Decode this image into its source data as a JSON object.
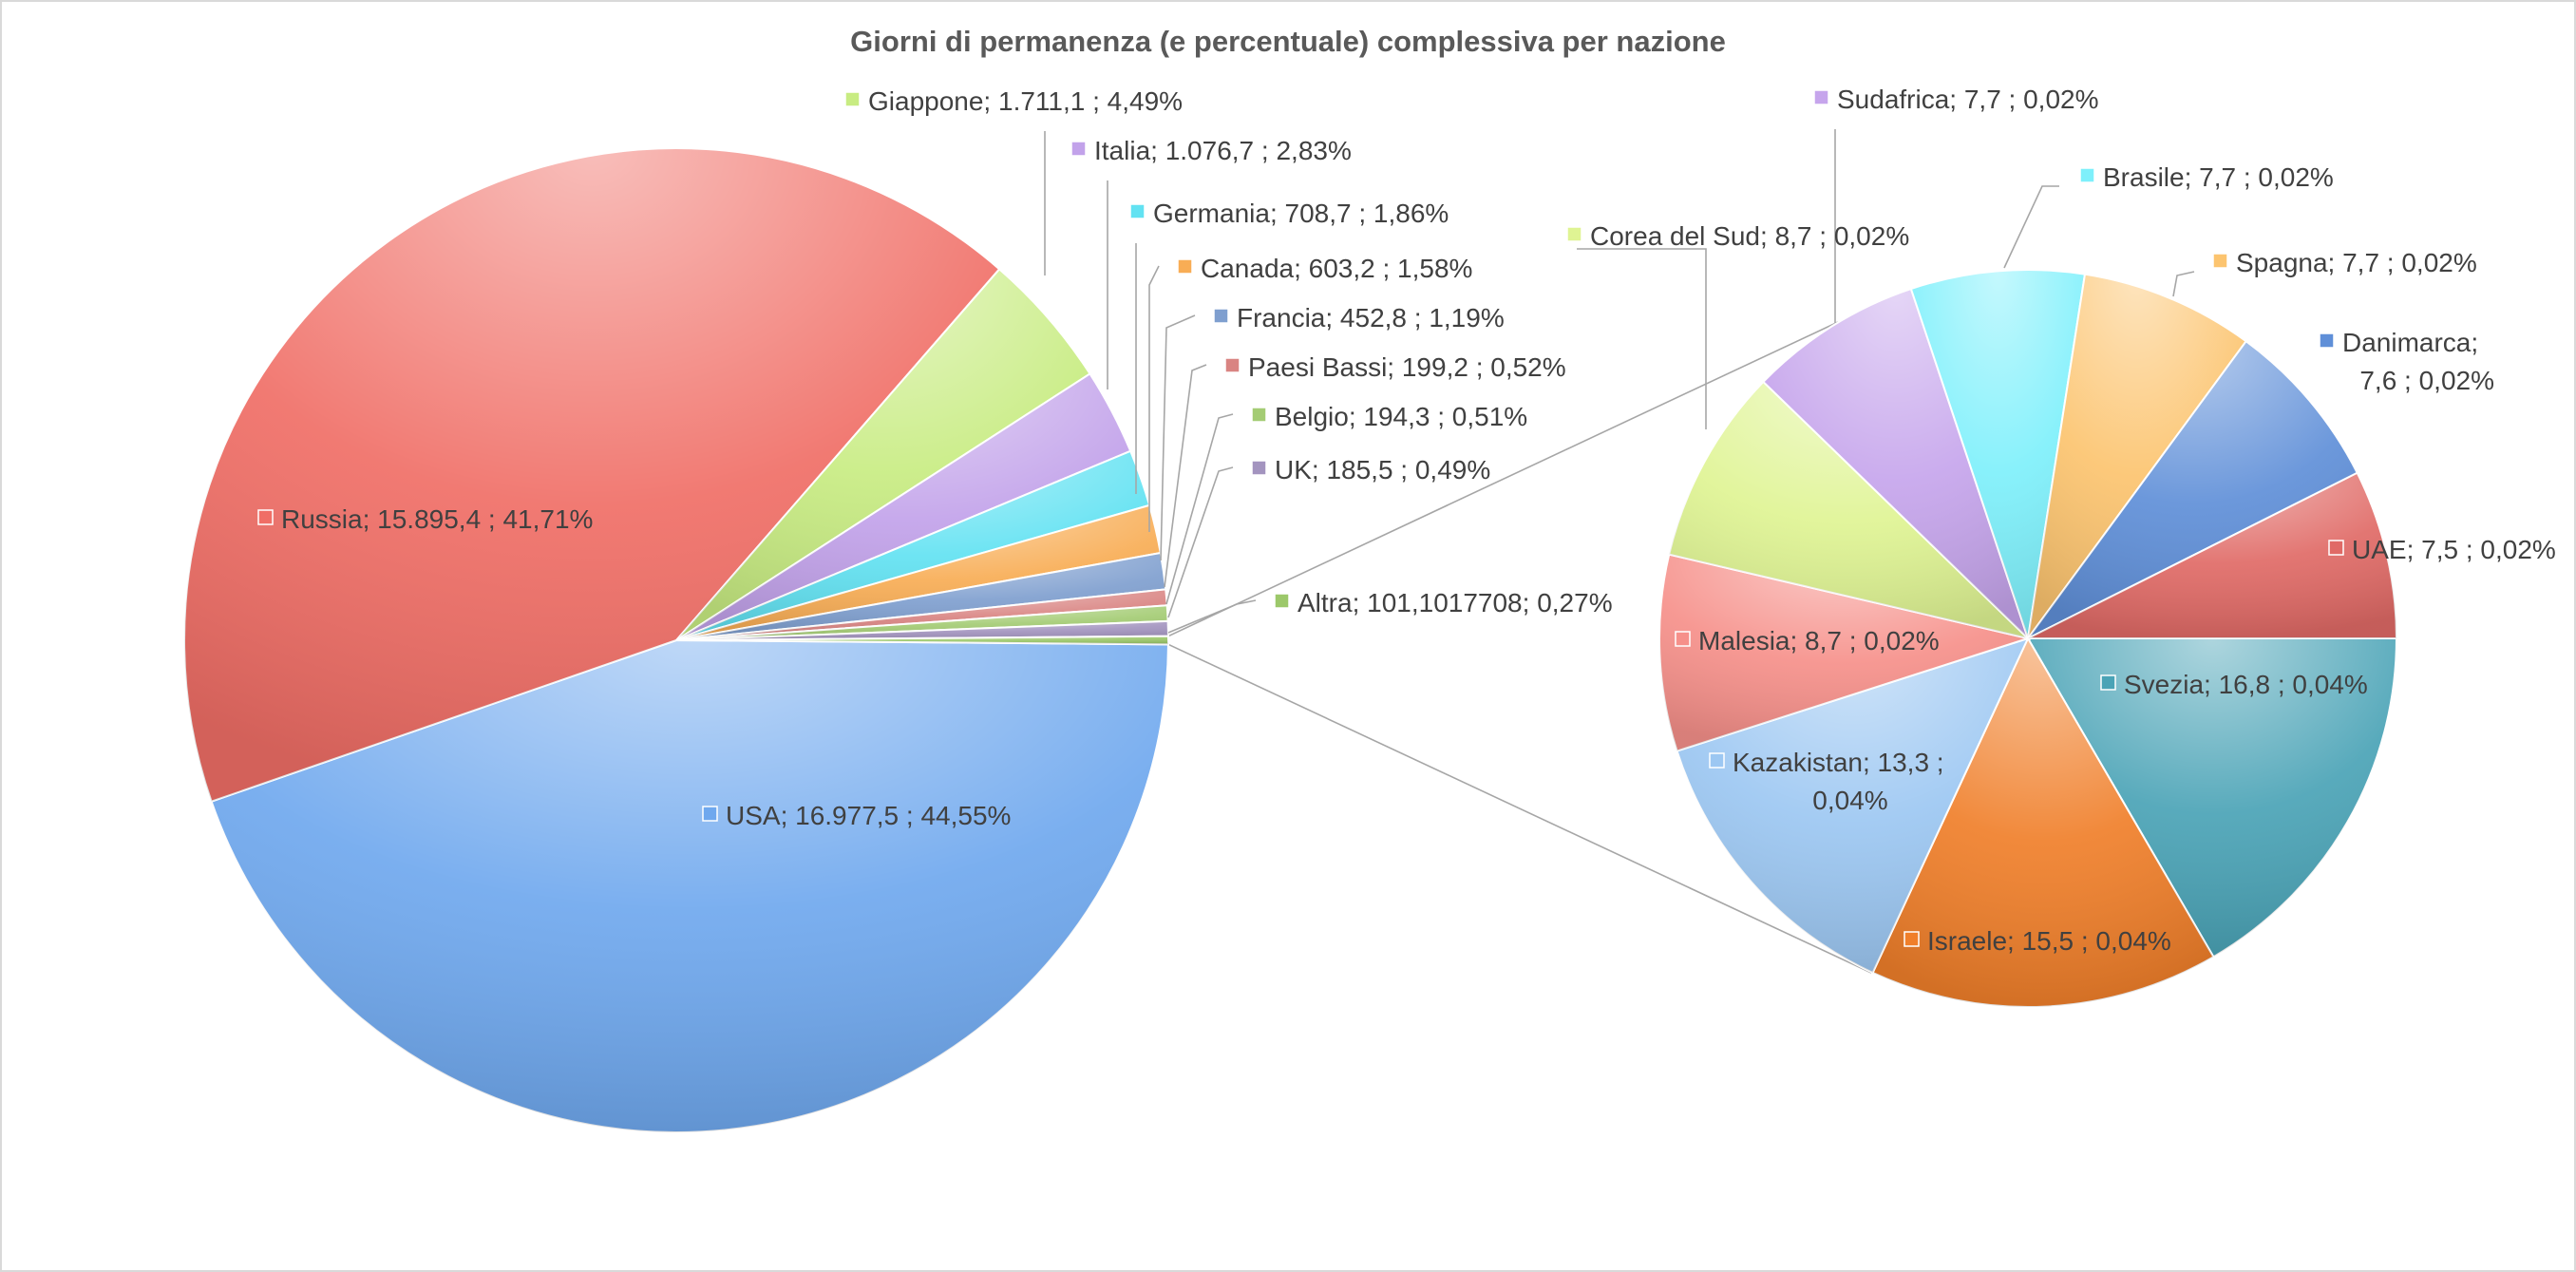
{
  "chart_data": {
    "type": "pie",
    "subtype": "pie-of-pie",
    "title": "Giorni di permanenza (e percentuale) complessiva per nazione",
    "main_pie": [
      {
        "name": "USA",
        "value": 16977.5,
        "value_label": "16.977,5",
        "percent_label": "44,55%",
        "color": "#6fa8ee"
      },
      {
        "name": "Russia",
        "value": 15895.4,
        "value_label": "15.895,4",
        "percent_label": "41,71%",
        "color": "#f06e66"
      },
      {
        "name": "Giappone",
        "value": 1711.1,
        "value_label": "1.711,1",
        "percent_label": "4,49%",
        "color": "#c8ec82"
      },
      {
        "name": "Italia",
        "value": 1076.7,
        "value_label": "1.076,7",
        "percent_label": "2,83%",
        "color": "#c2a2ea"
      },
      {
        "name": "Germania",
        "value": 708.7,
        "value_label": "708,7",
        "percent_label": "1,86%",
        "color": "#62e2f2"
      },
      {
        "name": "Canada",
        "value": 603.2,
        "value_label": "603,2",
        "percent_label": "1,58%",
        "color": "#f8ad55"
      },
      {
        "name": "Francia",
        "value": 452.8,
        "value_label": "452,8",
        "percent_label": "1,19%",
        "color": "#7f9fcf"
      },
      {
        "name": "Paesi Bassi",
        "value": 199.2,
        "value_label": "199,2",
        "percent_label": "0,52%",
        "color": "#d98482"
      },
      {
        "name": "Belgio",
        "value": 194.3,
        "value_label": "194,3",
        "percent_label": "0,51%",
        "color": "#a4cc74"
      },
      {
        "name": "UK",
        "value": 185.5,
        "value_label": "185,5",
        "percent_label": "0,49%",
        "color": "#a394bf"
      },
      {
        "name": "Altra",
        "value": 101.1017708,
        "value_label": "101,1017708",
        "percent_label": "0,27%",
        "color": "#9cc86a",
        "label_style": "no-space"
      }
    ],
    "secondary_pie": [
      {
        "name": "Svezia",
        "value": 16.8,
        "value_label": "16,8",
        "percent_label": "0,04%",
        "color": "#4aa3b6"
      },
      {
        "name": "Israele",
        "value": 15.5,
        "value_label": "15,5",
        "percent_label": "0,04%",
        "color": "#f07f2a"
      },
      {
        "name": "Kazakistan",
        "value": 13.3,
        "value_label": "13,3",
        "percent_label": "0,04%",
        "color": "#9cc7f2"
      },
      {
        "name": "Malesia",
        "value": 8.7,
        "value_label": "8,7",
        "percent_label": "0,02%",
        "color": "#f6908a"
      },
      {
        "name": "Corea del Sud",
        "value": 8.7,
        "value_label": "8,7",
        "percent_label": "0,02%",
        "color": "#dff493"
      },
      {
        "name": "Sudafrica",
        "value": 7.7,
        "value_label": "7,7",
        "percent_label": "0,02%",
        "color": "#c6a5ec"
      },
      {
        "name": "Brasile",
        "value": 7.7,
        "value_label": "7,7",
        "percent_label": "0,02%",
        "color": "#7ef0fb"
      },
      {
        "name": "Spagna",
        "value": 7.7,
        "value_label": "7,7",
        "percent_label": "0,02%",
        "color": "#fcc46f"
      },
      {
        "name": "Danimarca",
        "value": 7.6,
        "value_label": "7,6",
        "percent_label": "0,02%",
        "color": "#5f8fd8"
      },
      {
        "name": "UAE",
        "value": 7.5,
        "value_label": "7,5",
        "percent_label": "0,02%",
        "color": "#e06a66"
      }
    ],
    "legend": "none",
    "data_labels": "category; value ; percentage"
  }
}
